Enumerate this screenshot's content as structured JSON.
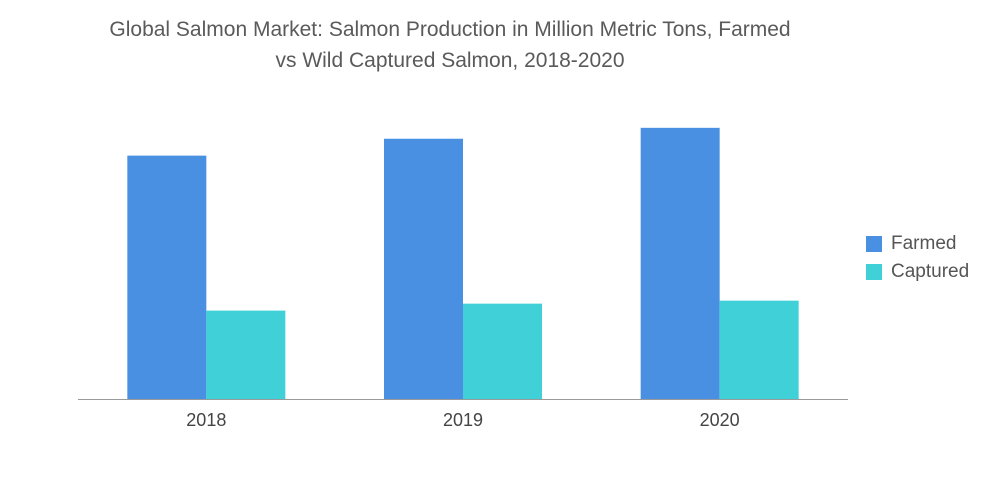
{
  "chart_data": {
    "type": "bar",
    "title_lines": [
      "Global Salmon Market: Salmon Production in Million Metric Tons, Farmed",
      "vs Wild Captured Salmon, 2018-2020"
    ],
    "xlabel": "",
    "ylabel": "",
    "categories": [
      "2018",
      "2019",
      "2020"
    ],
    "series": [
      {
        "name": "Farmed",
        "color": "#4a90e2",
        "values": [
          2.45,
          2.62,
          2.73
        ]
      },
      {
        "name": "Captured",
        "color": "#40d0d8",
        "values": [
          0.89,
          0.96,
          0.99
        ]
      }
    ],
    "ylim": [
      0,
      3.0
    ],
    "grid": false,
    "legend_position": "right"
  }
}
